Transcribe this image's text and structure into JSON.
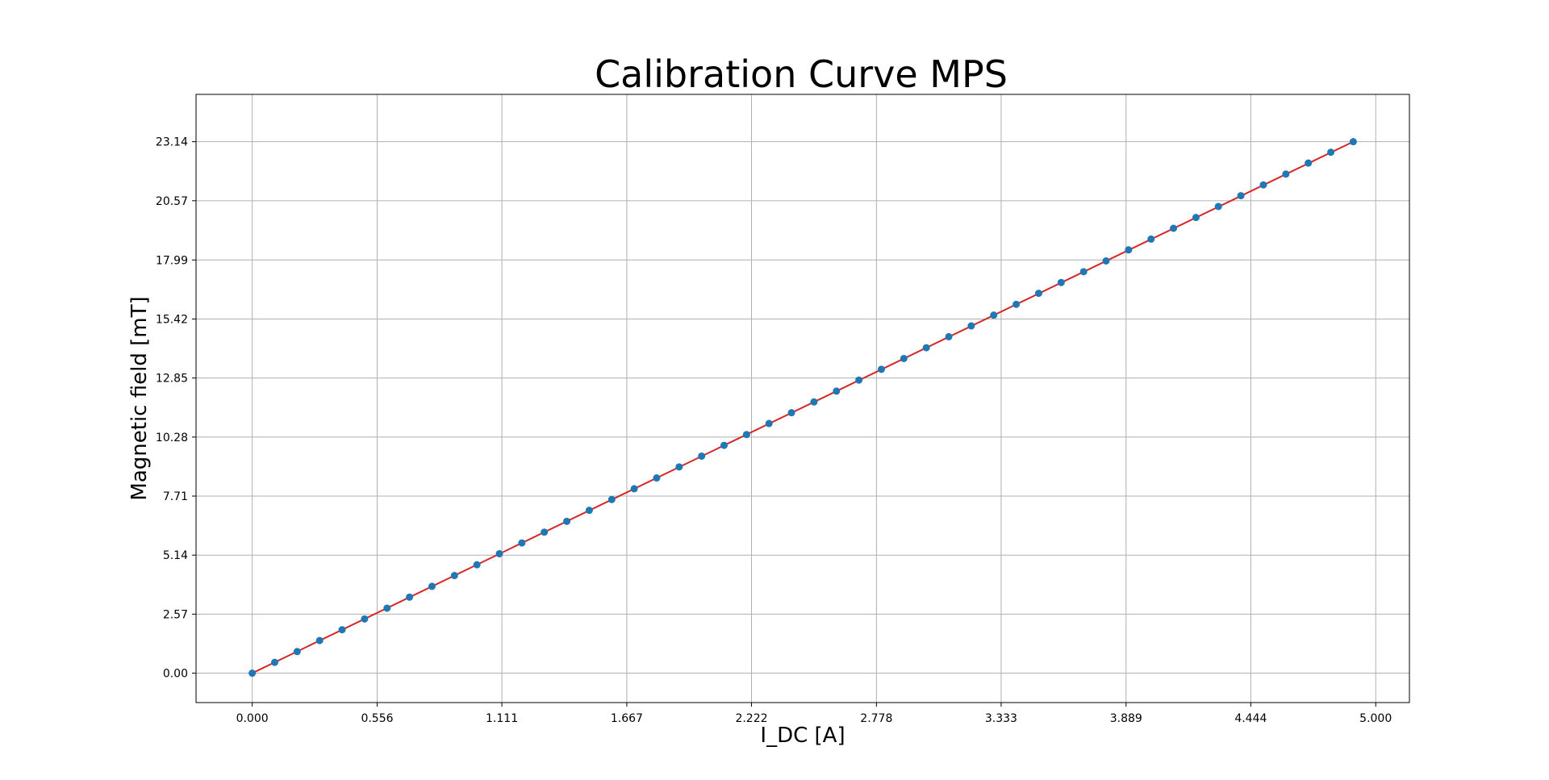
{
  "chart_data": {
    "type": "scatter",
    "title": "Calibration Curve MPS",
    "xlabel": "I_DC [A]",
    "ylabel": "Magnetic field [mT]",
    "xlim": [
      -0.25,
      5.15
    ],
    "ylim": [
      -1.28,
      25.2
    ],
    "grid": true,
    "x_ticks": [
      "0.000",
      "0.556",
      "1.111",
      "1.667",
      "2.222",
      "2.778",
      "3.333",
      "3.889",
      "4.444",
      "5.000"
    ],
    "y_ticks": [
      "0.00",
      "2.57",
      "5.14",
      "7.71",
      "10.28",
      "12.85",
      "15.42",
      "17.99",
      "20.57",
      "23.14"
    ],
    "series": [
      {
        "kind": "points",
        "color": "#1f77b4",
        "x": [
          0.0,
          0.1,
          0.2,
          0.3,
          0.4,
          0.5,
          0.6,
          0.7,
          0.8,
          0.9,
          1.0,
          1.1,
          1.2,
          1.3,
          1.4,
          1.5,
          1.6,
          1.7,
          1.8,
          1.9,
          2.0,
          2.1,
          2.2,
          2.3,
          2.4,
          2.5,
          2.6,
          2.7,
          2.8,
          2.9,
          3.0,
          3.1,
          3.2,
          3.3,
          3.4,
          3.5,
          3.6,
          3.7,
          3.8,
          3.9,
          4.0,
          4.1,
          4.2,
          4.3,
          4.4,
          4.5,
          4.6,
          4.7,
          4.8,
          4.9
        ],
        "y": [
          0.0,
          0.47,
          0.94,
          1.42,
          1.89,
          2.36,
          2.83,
          3.31,
          3.78,
          4.25,
          4.72,
          5.2,
          5.67,
          6.14,
          6.61,
          7.09,
          7.56,
          8.03,
          8.5,
          8.98,
          9.45,
          9.92,
          10.39,
          10.87,
          11.34,
          11.81,
          12.28,
          12.76,
          13.23,
          13.7,
          14.17,
          14.65,
          15.12,
          15.59,
          16.06,
          16.54,
          17.01,
          17.48,
          17.95,
          18.43,
          18.9,
          19.37,
          19.84,
          20.32,
          20.79,
          21.26,
          21.73,
          22.21,
          22.68,
          23.14
        ]
      },
      {
        "kind": "fit-line",
        "color": "#d62728",
        "x": [
          0.0,
          4.9
        ],
        "y": [
          0.0,
          23.14
        ]
      }
    ]
  }
}
